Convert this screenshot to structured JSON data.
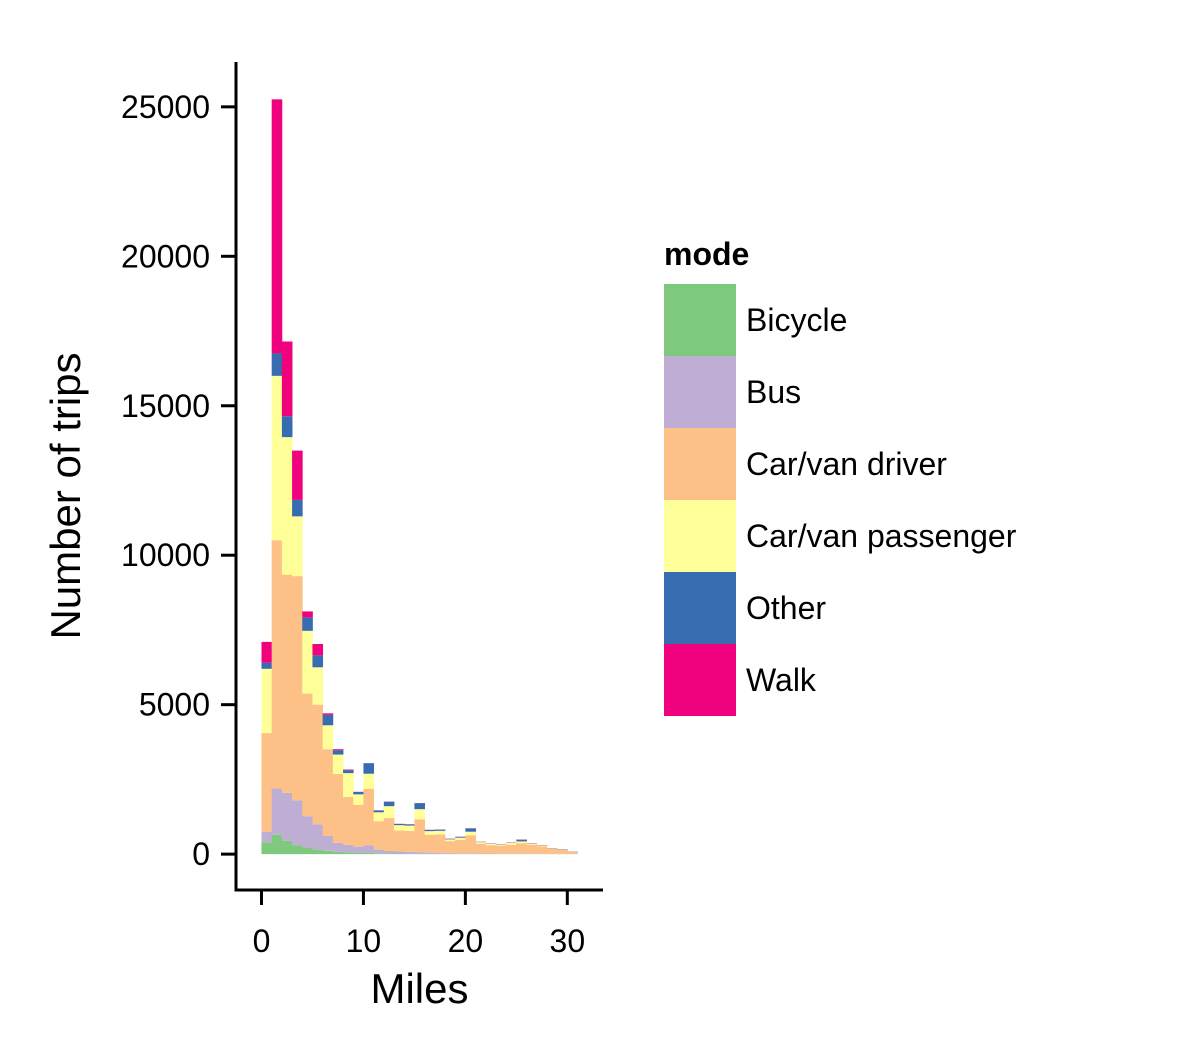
{
  "chart_data": {
    "type": "bar",
    "stacked": true,
    "xlabel": "Miles",
    "ylabel": "Number of trips",
    "xlim": [
      -2.5,
      33.5
    ],
    "ylim": [
      -1200,
      26500
    ],
    "xticks": [
      0,
      10,
      20,
      30
    ],
    "yticks": [
      0,
      5000,
      10000,
      15000,
      20000,
      25000
    ],
    "bin_width": 1,
    "x": [
      0.5,
      1.5,
      2.5,
      3.5,
      4.5,
      5.5,
      6.5,
      7.5,
      8.5,
      9.5,
      10.5,
      11.5,
      12.5,
      13.5,
      14.5,
      15.5,
      16.5,
      17.5,
      18.5,
      19.5,
      20.5,
      21.5,
      22.5,
      23.5,
      24.5,
      25.5,
      26.5,
      27.5,
      28.5,
      29.5,
      30.5
    ],
    "legend": {
      "title": "mode",
      "position": "right"
    },
    "series": [
      {
        "name": "Bicycle",
        "color": "#7fc97f",
        "values": [
          400,
          650,
          450,
          300,
          220,
          150,
          110,
          80,
          60,
          50,
          40,
          30,
          25,
          20,
          15,
          15,
          10,
          10,
          10,
          10,
          10,
          5,
          5,
          5,
          5,
          5,
          5,
          5,
          5,
          5,
          0
        ]
      },
      {
        "name": "Bus",
        "color": "#beaed4",
        "values": [
          350,
          1550,
          1600,
          1500,
          1050,
          850,
          500,
          300,
          250,
          200,
          250,
          120,
          80,
          70,
          60,
          50,
          40,
          30,
          25,
          20,
          20,
          15,
          15,
          10,
          10,
          10,
          10,
          5,
          5,
          5,
          0
        ]
      },
      {
        "name": "Car/van driver",
        "color": "#fdc086",
        "values": [
          3300,
          8300,
          7300,
          7500,
          4100,
          4000,
          2900,
          2300,
          1600,
          1400,
          1900,
          950,
          1100,
          700,
          700,
          1100,
          600,
          620,
          400,
          450,
          600,
          330,
          280,
          270,
          300,
          350,
          300,
          250,
          160,
          130,
          70
        ]
      },
      {
        "name": "Car/van passenger",
        "color": "#ffff99",
        "values": [
          2150,
          5500,
          4600,
          2000,
          2100,
          1250,
          800,
          650,
          800,
          350,
          500,
          300,
          400,
          180,
          180,
          340,
          120,
          120,
          60,
          70,
          120,
          50,
          40,
          40,
          60,
          60,
          40,
          30,
          20,
          10,
          0
        ]
      },
      {
        "name": "Other",
        "color": "#386cb0",
        "values": [
          200,
          750,
          700,
          550,
          450,
          400,
          350,
          150,
          100,
          80,
          350,
          60,
          150,
          40,
          40,
          200,
          40,
          40,
          20,
          30,
          110,
          10,
          10,
          10,
          10,
          60,
          10,
          10,
          10,
          10,
          10
        ]
      },
      {
        "name": "Walk",
        "color": "#f0027f",
        "values": [
          700,
          8500,
          2500,
          1650,
          200,
          380,
          50,
          30,
          20,
          5,
          5,
          5,
          5,
          5,
          5,
          5,
          5,
          5,
          5,
          5,
          5,
          5,
          5,
          5,
          5,
          5,
          5,
          5,
          5,
          5,
          0
        ]
      }
    ]
  }
}
